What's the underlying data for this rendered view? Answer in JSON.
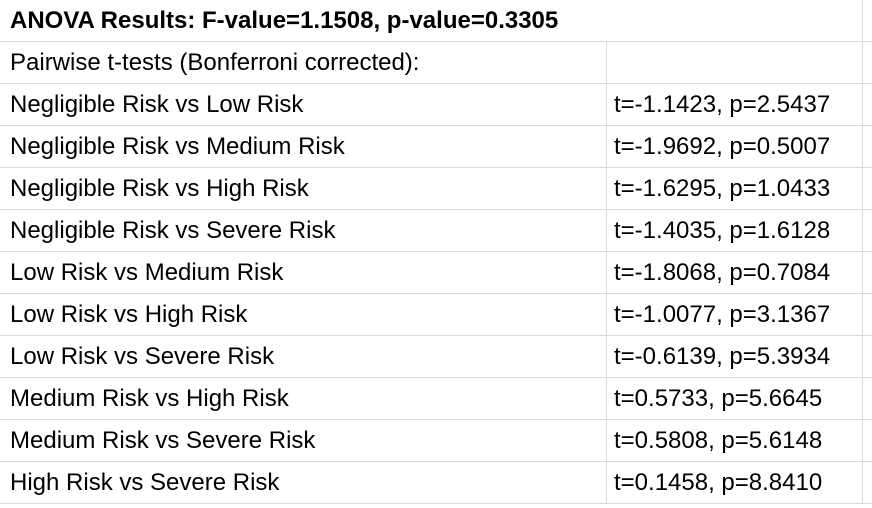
{
  "header": {
    "title": "ANOVA Results: F-value=1.1508, p-value=0.3305"
  },
  "subheader": {
    "label": "Pairwise t-tests (Bonferroni corrected):"
  },
  "rows": [
    {
      "comparison": "Negligible Risk vs Low Risk",
      "result": "t=-1.1423, p=2.5437"
    },
    {
      "comparison": "Negligible Risk vs Medium Risk",
      "result": "t=-1.9692, p=0.5007"
    },
    {
      "comparison": "Negligible Risk vs High Risk",
      "result": "t=-1.6295, p=1.0433"
    },
    {
      "comparison": "Negligible Risk vs Severe Risk",
      "result": "t=-1.4035, p=1.6128"
    },
    {
      "comparison": "Low Risk vs Medium Risk",
      "result": "t=-1.8068, p=0.7084"
    },
    {
      "comparison": "Low Risk vs High Risk",
      "result": "t=-1.0077, p=3.1367"
    },
    {
      "comparison": "Low Risk vs Severe Risk",
      "result": "t=-0.6139, p=5.3934"
    },
    {
      "comparison": "Medium Risk vs High Risk",
      "result": "t=0.5733, p=5.6645"
    },
    {
      "comparison": "Medium Risk vs Severe Risk",
      "result": "t=0.5808, p=5.6148"
    },
    {
      "comparison": "High Risk vs Severe Risk",
      "result": "t=0.1458, p=8.8410"
    }
  ]
}
